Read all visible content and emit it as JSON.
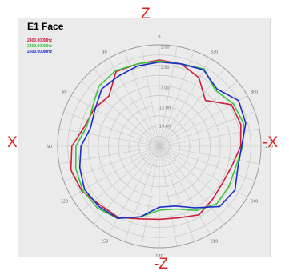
{
  "labels": {
    "top": "Z",
    "bottom": "-Z",
    "left": "X",
    "right": "-X"
  },
  "chart_data": {
    "type": "line",
    "subtype": "polar",
    "title": "E1 Face",
    "angle_labels": [
      "0",
      "30",
      "60",
      "90",
      "120",
      "150",
      "180",
      "210",
      "240",
      "270",
      "300",
      "330"
    ],
    "angle_direction": "counterclockwise",
    "zero_position": "top",
    "radial_labels": [
      "1.00",
      "1.80",
      "7.00",
      "13.00",
      "19.00"
    ],
    "grid": true,
    "legend_position": "top-left",
    "series": [
      {
        "name": "2400.000MHz",
        "color": "#cc1f3c",
        "angles": [
          0,
          15,
          30,
          45,
          60,
          75,
          90,
          105,
          120,
          135,
          150,
          165,
          180,
          195,
          210,
          225,
          240,
          255,
          270,
          285,
          300,
          315,
          330,
          345
        ],
        "radius": [
          0.85,
          0.84,
          0.85,
          0.7,
          0.74,
          0.76,
          0.86,
          0.9,
          0.88,
          0.82,
          0.81,
          0.74,
          0.72,
          0.73,
          0.78,
          0.74,
          0.72,
          0.74,
          0.8,
          0.83,
          0.82,
          0.64,
          0.78,
          0.84
        ]
      },
      {
        "name": "2450.000MHz",
        "color": "#3ec43e",
        "angles": [
          0,
          15,
          30,
          45,
          60,
          75,
          90,
          105,
          120,
          135,
          150,
          165,
          180,
          195,
          210,
          225,
          240,
          255,
          270,
          285,
          300,
          315,
          330,
          345
        ],
        "radius": [
          0.84,
          0.84,
          0.86,
          0.84,
          0.76,
          0.74,
          0.82,
          0.85,
          0.87,
          0.86,
          0.82,
          0.72,
          0.63,
          0.64,
          0.73,
          0.8,
          0.79,
          0.78,
          0.82,
          0.86,
          0.84,
          0.78,
          0.88,
          0.84
        ]
      },
      {
        "name": "2500.000MHz",
        "color": "#1c2ec8",
        "angles": [
          0,
          15,
          30,
          45,
          60,
          75,
          90,
          105,
          120,
          135,
          150,
          165,
          180,
          195,
          210,
          225,
          240,
          255,
          270,
          285,
          300,
          315,
          330,
          345
        ],
        "radius": [
          0.83,
          0.82,
          0.8,
          0.8,
          0.73,
          0.7,
          0.77,
          0.81,
          0.85,
          0.84,
          0.82,
          0.72,
          0.6,
          0.61,
          0.7,
          0.84,
          0.86,
          0.8,
          0.81,
          0.88,
          0.9,
          0.8,
          0.87,
          0.84
        ]
      }
    ]
  }
}
